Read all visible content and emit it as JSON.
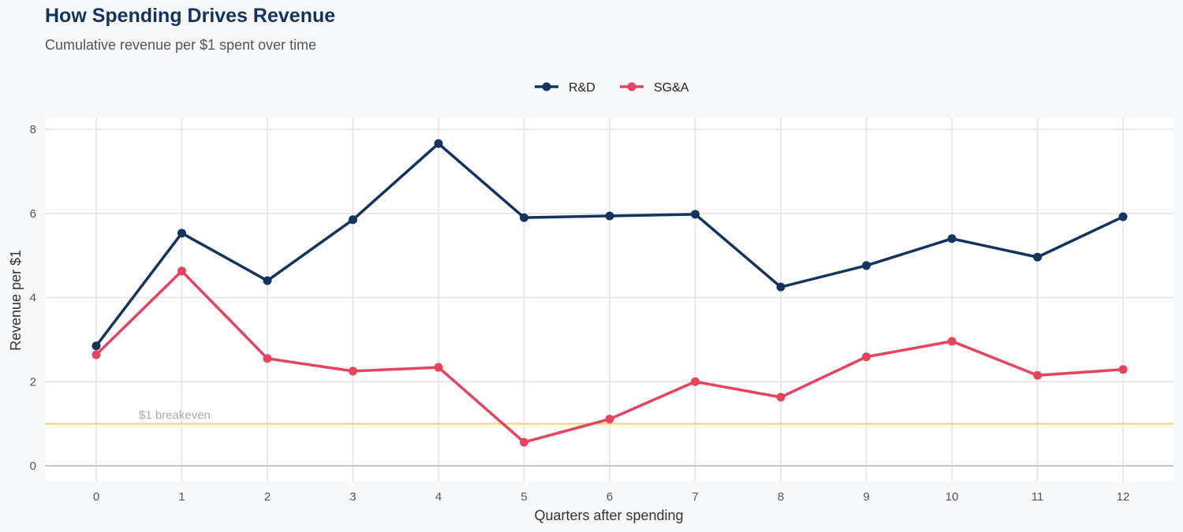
{
  "chart_data": {
    "type": "line",
    "title": "How Spending Drives Revenue",
    "subtitle": "Cumulative revenue per $1 spent over time",
    "xlabel": "Quarters after spending",
    "ylabel": "Revenue per $1",
    "x": [
      0,
      1,
      2,
      3,
      4,
      5,
      6,
      7,
      8,
      9,
      10,
      11,
      12
    ],
    "xlim": [
      -0.6,
      12.6
    ],
    "ylim": [
      -0.4,
      8.2
    ],
    "yticks": [
      0,
      2,
      4,
      6,
      8
    ],
    "grid": true,
    "legend": "top-center",
    "series": [
      {
        "name": "R&D",
        "color": "#14335e",
        "values": [
          2.85,
          5.53,
          4.4,
          5.85,
          7.66,
          5.9,
          5.94,
          5.98,
          4.25,
          4.76,
          5.4,
          4.96,
          5.92
        ]
      },
      {
        "name": "SG&A",
        "color": "#e5435e",
        "values": [
          2.64,
          4.63,
          2.55,
          2.25,
          2.34,
          0.56,
          1.11,
          2.0,
          1.63,
          2.59,
          2.96,
          2.15,
          2.29
        ]
      }
    ],
    "reference_line": {
      "y": 1,
      "label": "$1 breakeven",
      "color": "#ffd060"
    }
  }
}
